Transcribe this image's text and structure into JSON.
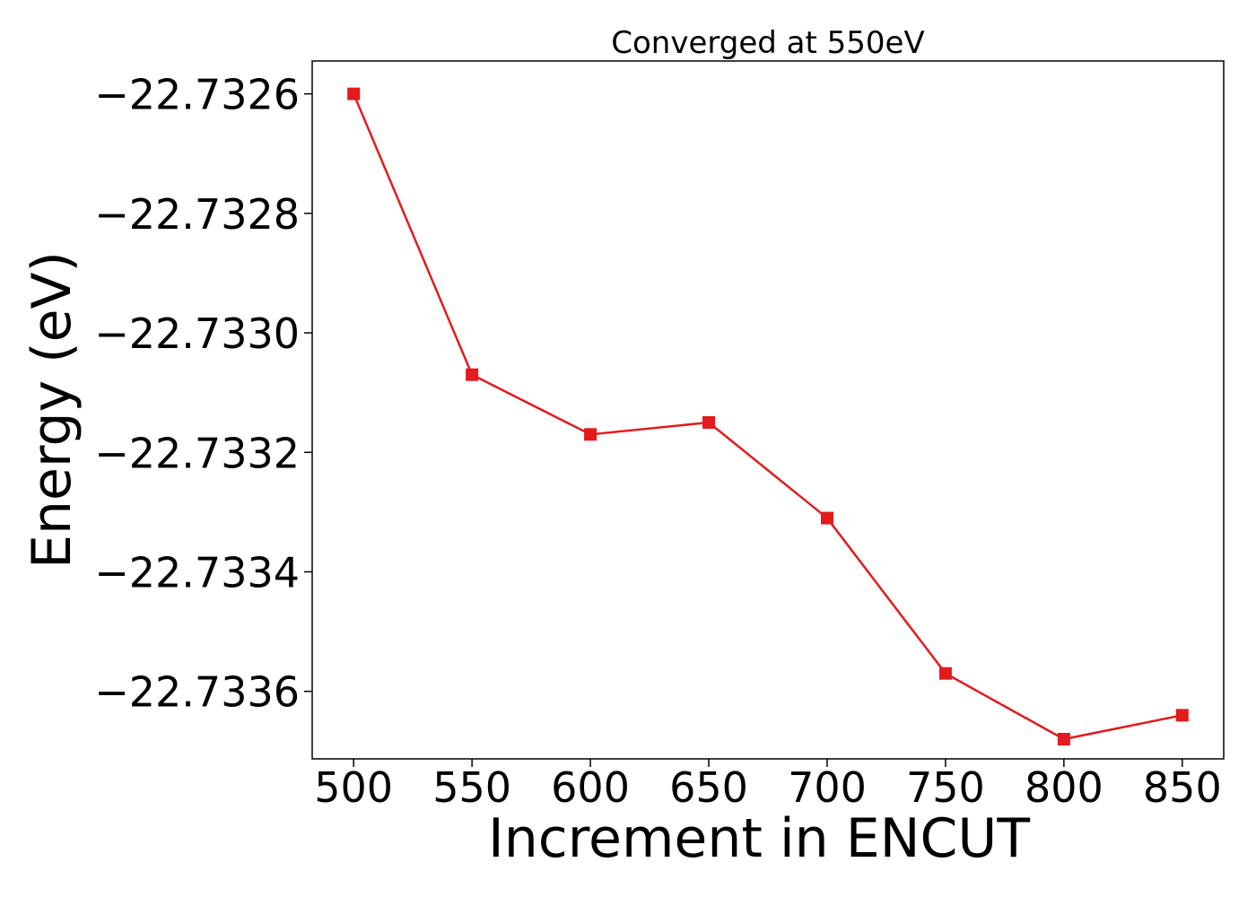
{
  "chart_data": {
    "type": "line",
    "title": "Converged at 550eV",
    "xlabel": "Increment in ENCUT",
    "ylabel": "Energy (eV)",
    "x": [
      500,
      550,
      600,
      650,
      700,
      750,
      800,
      850
    ],
    "series": [
      {
        "values": [
          -22.7326,
          -22.73307,
          -22.73317,
          -22.73315,
          -22.73331,
          -22.73357,
          -22.73368,
          -22.73364
        ],
        "color": "#e41a1c",
        "marker": "square"
      }
    ],
    "xticks": [
      500,
      550,
      600,
      650,
      700,
      750,
      800,
      850
    ],
    "xtick_labels": [
      "500",
      "550",
      "600",
      "650",
      "700",
      "750",
      "800",
      "850"
    ],
    "yticks": [
      -22.7326,
      -22.7328,
      -22.733,
      -22.7332,
      -22.7334,
      -22.7336
    ],
    "ytick_labels": [
      "−22.7326",
      "−22.7328",
      "−22.7330",
      "−22.7332",
      "−22.7334",
      "−22.7336"
    ],
    "xlim": [
      482.5,
      867.5
    ],
    "ylim": [
      -22.733713,
      -22.732545
    ],
    "grid": false,
    "legend": "none"
  }
}
